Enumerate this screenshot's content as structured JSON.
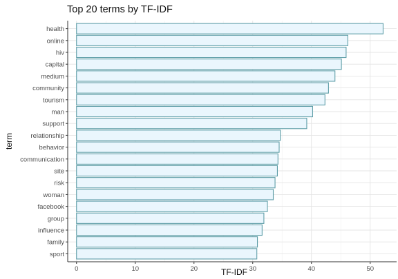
{
  "chart_data": {
    "type": "bar",
    "orientation": "horizontal",
    "title": "Top 20 terms by TF-IDF",
    "xlabel": "TF-IDF",
    "ylabel": "term",
    "categories": [
      "health",
      "online",
      "hiv",
      "capital",
      "medium",
      "community",
      "tourism",
      "man",
      "support",
      "relationship",
      "behavior",
      "communication",
      "site",
      "risk",
      "woman",
      "facebook",
      "group",
      "influence",
      "family",
      "sport"
    ],
    "values": [
      52.2,
      46.2,
      45.9,
      45.1,
      44.0,
      42.9,
      42.3,
      40.2,
      39.2,
      34.7,
      34.5,
      34.3,
      34.2,
      33.8,
      33.5,
      32.5,
      31.9,
      31.6,
      30.8,
      30.7
    ],
    "xlim": [
      -1.5,
      54.5
    ],
    "xticks": [
      0,
      10,
      20,
      30,
      40,
      50
    ],
    "grid": true,
    "bar_fill": "#eaf6fd",
    "bar_stroke": "#5f9ea8",
    "axis_color": "#333333",
    "grid_major_color": "#e4e4e4",
    "grid_minor_color": "#f2f2f2"
  }
}
